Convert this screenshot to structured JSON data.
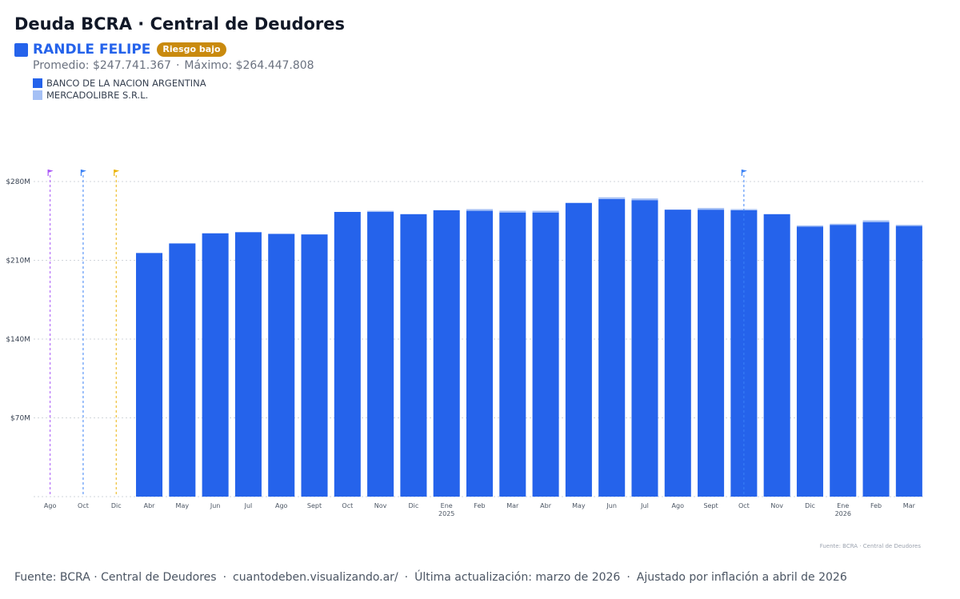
{
  "header": {
    "title": "Deuda BCRA · Central de Deudores",
    "entity_name": "RANDLE FELIPE",
    "risk_badge": "Riesgo bajo",
    "promedio": "Promedio: $247.741.367",
    "stat_separator": "·",
    "maximo": "Máximo: $264.447.808"
  },
  "colors": {
    "primary": "#2563eb",
    "secondary": "#a5c0f5",
    "badge": "#c98a0e",
    "flag_purple": "#a855f7",
    "flag_blue": "#3b82f6",
    "flag_yellow": "#eab308",
    "grid": "#d1d5db"
  },
  "footer": {
    "source": "Fuente: BCRA · Central de Deudores",
    "site": "cuantodeben.visualizando.ar/",
    "updated": "Última actualización: marzo de 2026",
    "adjusted": "Ajustado por inflación a abril de 2026",
    "separator": "·"
  },
  "chart_data": {
    "type": "bar",
    "stacked": true,
    "y_ticks": [
      {
        "value": 70000000,
        "label": "$70M"
      },
      {
        "value": 140000000,
        "label": "$140M"
      },
      {
        "value": 210000000,
        "label": "$210M"
      },
      {
        "value": 280000000,
        "label": "$280M"
      }
    ],
    "ylim": [
      0,
      280000000
    ],
    "grid": true,
    "categories": [
      {
        "label": "Ago",
        "year": ""
      },
      {
        "label": "Oct",
        "year": ""
      },
      {
        "label": "Dic",
        "year": ""
      },
      {
        "label": "Abr",
        "year": ""
      },
      {
        "label": "May",
        "year": ""
      },
      {
        "label": "Jun",
        "year": ""
      },
      {
        "label": "Jul",
        "year": ""
      },
      {
        "label": "Ago",
        "year": ""
      },
      {
        "label": "Sept",
        "year": ""
      },
      {
        "label": "Oct",
        "year": ""
      },
      {
        "label": "Nov",
        "year": ""
      },
      {
        "label": "Dic",
        "year": ""
      },
      {
        "label": "Ene",
        "year": "2025"
      },
      {
        "label": "Feb",
        "year": ""
      },
      {
        "label": "Mar",
        "year": ""
      },
      {
        "label": "Abr",
        "year": ""
      },
      {
        "label": "May",
        "year": ""
      },
      {
        "label": "Jun",
        "year": ""
      },
      {
        "label": "Jul",
        "year": ""
      },
      {
        "label": "Ago",
        "year": ""
      },
      {
        "label": "Sept",
        "year": ""
      },
      {
        "label": "Oct",
        "year": ""
      },
      {
        "label": "Nov",
        "year": ""
      },
      {
        "label": "Dic",
        "year": ""
      },
      {
        "label": "Ene",
        "year": "2026"
      },
      {
        "label": "Feb",
        "year": ""
      },
      {
        "label": "Mar",
        "year": ""
      }
    ],
    "series": [
      {
        "name": "BANCO DE LA NACION ARGENTINA",
        "color": "#2563eb",
        "values": [
          null,
          null,
          null,
          216500000,
          225000000,
          234000000,
          235000000,
          233500000,
          233000000,
          253000000,
          253000000,
          251000000,
          254500000,
          254000000,
          252500000,
          252500000,
          261000000,
          264500000,
          263500000,
          255000000,
          255000000,
          254500000,
          251000000,
          240000000,
          241500000,
          244000000,
          240500000
        ]
      },
      {
        "name": "MERCADOLIBRE S.R.L.",
        "color": "#a5c0f5",
        "values": [
          null,
          null,
          null,
          0,
          0,
          0,
          0,
          0,
          0,
          0,
          1000000,
          0,
          0,
          1500000,
          1500000,
          1500000,
          0,
          1500000,
          1500000,
          0,
          1500000,
          1000000,
          0,
          1000000,
          1000000,
          1500000,
          1000000
        ]
      }
    ],
    "flags": [
      {
        "category_index": 0,
        "color": "#a855f7"
      },
      {
        "category_index": 1,
        "color": "#3b82f6"
      },
      {
        "category_index": 2,
        "color": "#eab308"
      },
      {
        "category_index": 21,
        "color": "#3b82f6"
      }
    ],
    "source_note": "Fuente: BCRA · Central de Deudores"
  }
}
